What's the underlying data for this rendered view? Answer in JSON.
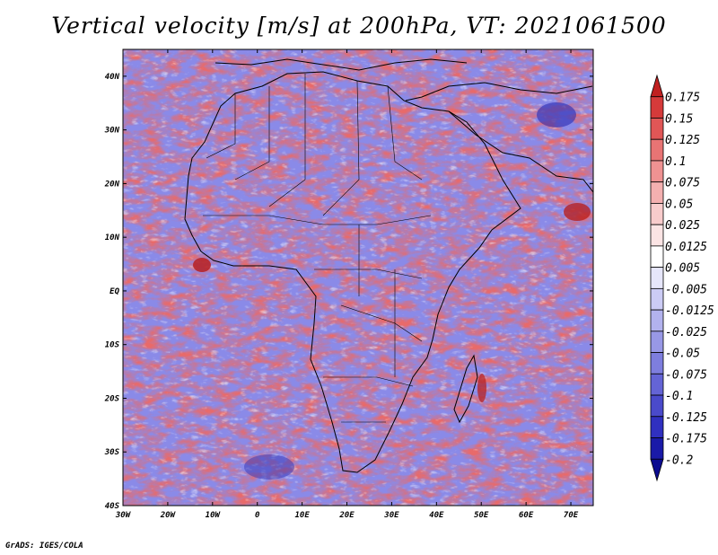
{
  "title": "Vertical velocity [m/s] at 200hPa, VT: 2021061500",
  "footer": "GrADS: IGES/COLA",
  "map": {
    "region": "Africa",
    "lon_range": [
      -30,
      75
    ],
    "lat_range": [
      -40,
      45
    ],
    "lon_ticks": [
      "30W",
      "20W",
      "10W",
      "0",
      "10E",
      "20E",
      "30E",
      "40E",
      "50E",
      "60E",
      "70E"
    ],
    "lat_ticks": [
      "40N",
      "30N",
      "20N",
      "10N",
      "EQ",
      "10S",
      "20S",
      "30S",
      "40S"
    ]
  },
  "colorbar": {
    "labels": [
      "0.175",
      "0.15",
      "0.125",
      "0.1",
      "0.075",
      "0.05",
      "0.025",
      "0.0125",
      "0.005",
      "-0.005",
      "-0.0125",
      "-0.025",
      "-0.05",
      "-0.075",
      "-0.1",
      "-0.125",
      "-0.175",
      "-0.2"
    ],
    "colors": [
      "#c02020",
      "#d53a3a",
      "#e05656",
      "#e87474",
      "#ef9292",
      "#f4b0b0",
      "#f8cccc",
      "#fbe4e4",
      "#ffffff",
      "#e6e6fa",
      "#ccccf5",
      "#b2b2ee",
      "#9898e6",
      "#7e7ede",
      "#6464d5",
      "#4a4acb",
      "#3030c0",
      "#1a1aa8",
      "#0c0c90"
    ]
  }
}
